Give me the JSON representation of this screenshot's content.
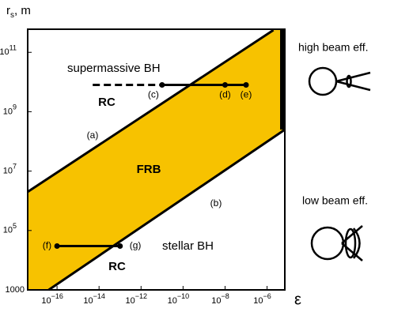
{
  "chart_data": {
    "type": "line",
    "xlabel": "ε",
    "ylabel": "rs, m",
    "xlog": true,
    "ylog": true,
    "xlim": [
      4e-18,
      7e-06
    ],
    "ylim": [
      1000,
      600000000000.0
    ],
    "xticks": [
      {
        "value": 1e-16,
        "label": "10−16"
      },
      {
        "value": 1e-14,
        "label": "10−14"
      },
      {
        "value": 1e-12,
        "label": "10−12"
      },
      {
        "value": 1e-10,
        "label": "10−10"
      },
      {
        "value": 1e-08,
        "label": "10−8"
      },
      {
        "value": 1e-06,
        "label": "10−6"
      }
    ],
    "yticks": [
      1000,
      {
        "value": 100000,
        "label": "105"
      },
      {
        "value": 10000000,
        "label": "107"
      },
      {
        "value": 1000000000,
        "label": "109"
      },
      {
        "value": 100000000000,
        "label": "1011"
      }
    ],
    "band": {
      "label": "FRB",
      "color": "#f7c200"
    },
    "series": [
      {
        "name": "(a)",
        "color": "#000000",
        "x": [
          4e-18,
          2e-06
        ],
        "values": [
          2000000,
          560000000000
        ]
      },
      {
        "name": "(b)",
        "color": "#000000",
        "x": [
          4e-17,
          7e-06
        ],
        "values": [
          1000,
          250000000
        ]
      },
      {
        "color": "#000000",
        "dash": true,
        "x": [
          5e-15,
          1e-11
        ],
        "values": [
          8000000000,
          8000000000
        ]
      },
      {
        "name": "RC",
        "color": "#000000",
        "markers": true,
        "x": [
          1e-11,
          1e-08,
          1e-07
        ],
        "values": [
          8000000000,
          8000000000,
          8000000000
        ],
        "point_labels": [
          "(c)",
          "(d)",
          "(e)"
        ]
      },
      {
        "name": "RC",
        "color": "#000000",
        "markers": true,
        "x": [
          1e-16,
          1e-13
        ],
        "values": [
          30000,
          30000
        ],
        "point_labels": [
          "(f)",
          "(g)"
        ]
      }
    ],
    "annotations": [
      "supermassive BH",
      "stellar BH",
      "high beam eff.",
      "low beam eff."
    ]
  }
}
